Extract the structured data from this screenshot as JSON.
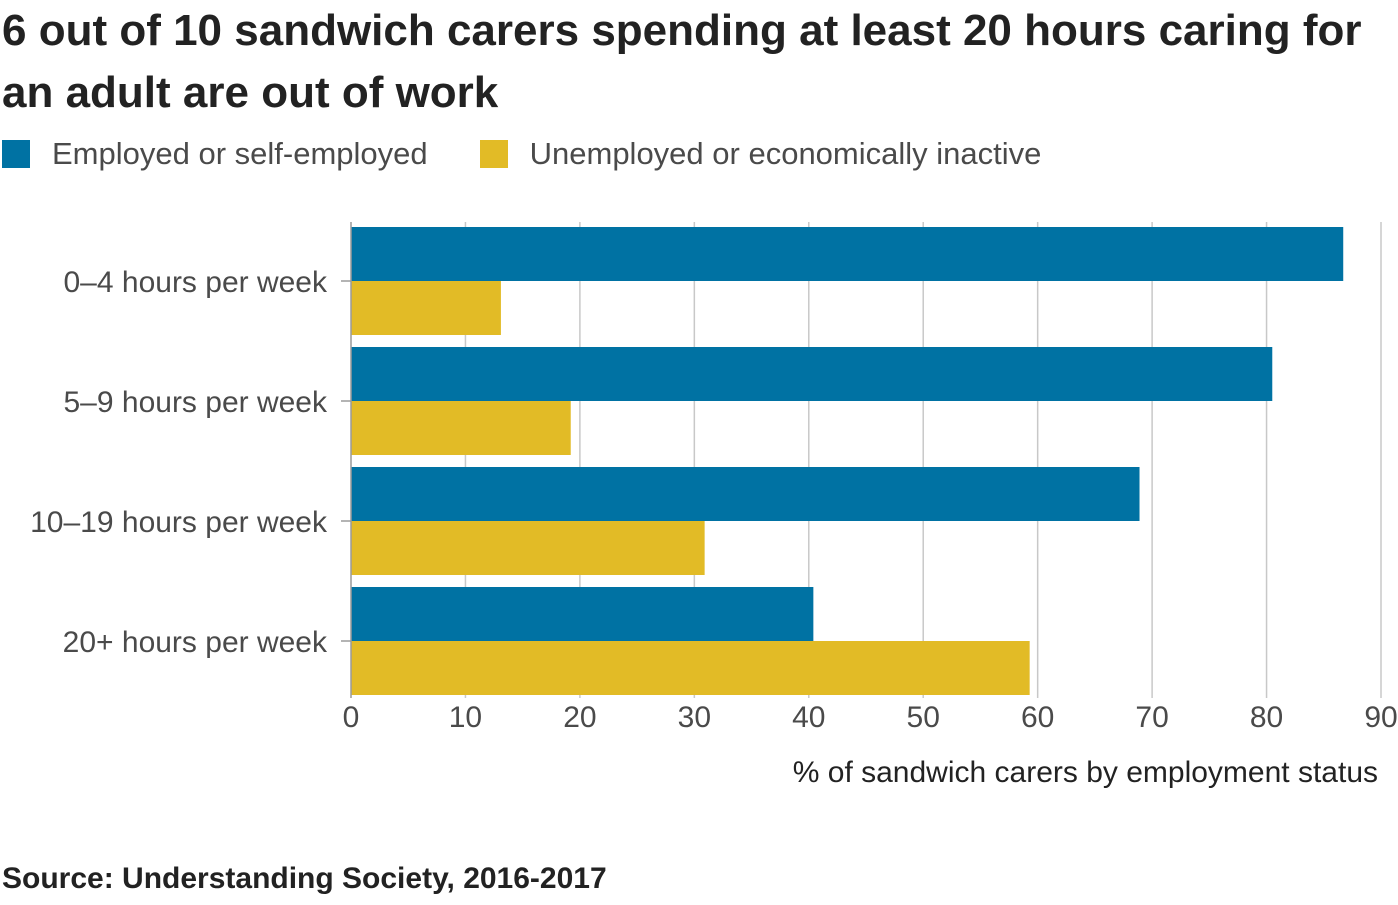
{
  "title": "6 out of 10 sandwich carers spending at least 20 hours caring for an adult are out of work",
  "source": "Source: Understanding Society, 2016-2017",
  "chart_data": {
    "type": "bar",
    "orientation": "horizontal",
    "categories": [
      "0–4 hours per week",
      "5–9 hours per week",
      "10–19 hours per week",
      "20+ hours per week"
    ],
    "series": [
      {
        "name": "Employed or self-employed",
        "color": "#0072a3",
        "values": [
          86.7,
          80.5,
          68.9,
          40.4
        ]
      },
      {
        "name": "Unemployed or economically inactive",
        "color": "#e2bb26",
        "values": [
          13.1,
          19.2,
          30.9,
          59.3
        ]
      }
    ],
    "xlabel": "% of sandwich carers by employment status",
    "ylabel": "",
    "xlim": [
      0,
      90
    ],
    "xticks": [
      0,
      10,
      20,
      30,
      40,
      50,
      60,
      70,
      80,
      90
    ],
    "grid": true,
    "legend_position": "top-left"
  }
}
